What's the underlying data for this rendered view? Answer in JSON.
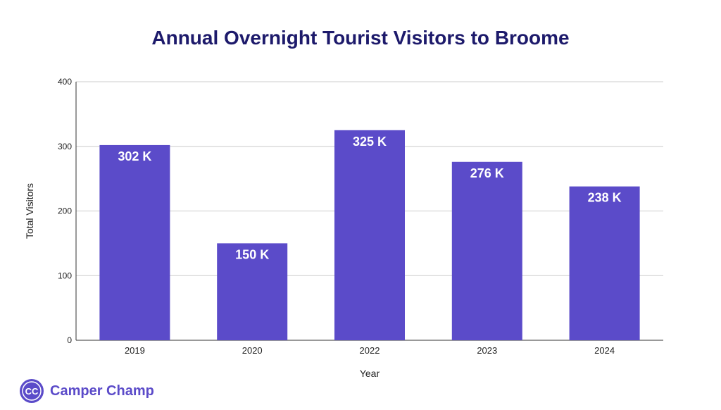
{
  "chart_data": {
    "type": "bar",
    "title": "Annual Overnight Tourist Visitors to Broome",
    "xlabel": "Year",
    "ylabel": "Total Visitors",
    "categories": [
      "2019",
      "2020",
      "2022",
      "2023",
      "2024"
    ],
    "values": [
      302,
      150,
      325,
      276,
      238
    ],
    "value_labels": [
      "302 K",
      "150 K",
      "325 K",
      "276 K",
      "238 K"
    ],
    "ylim": [
      0,
      400
    ],
    "yticks": [
      0,
      100,
      200,
      300,
      400
    ],
    "grid": true,
    "legend": "none",
    "colors": {
      "bar": "#5b4bc9",
      "title": "#1d1a6b",
      "grid": "#cccccc",
      "label": "#ffffff"
    }
  },
  "brand": {
    "logo_text": "CC",
    "name": "Camper Champ",
    "color": "#5b4bc9"
  }
}
